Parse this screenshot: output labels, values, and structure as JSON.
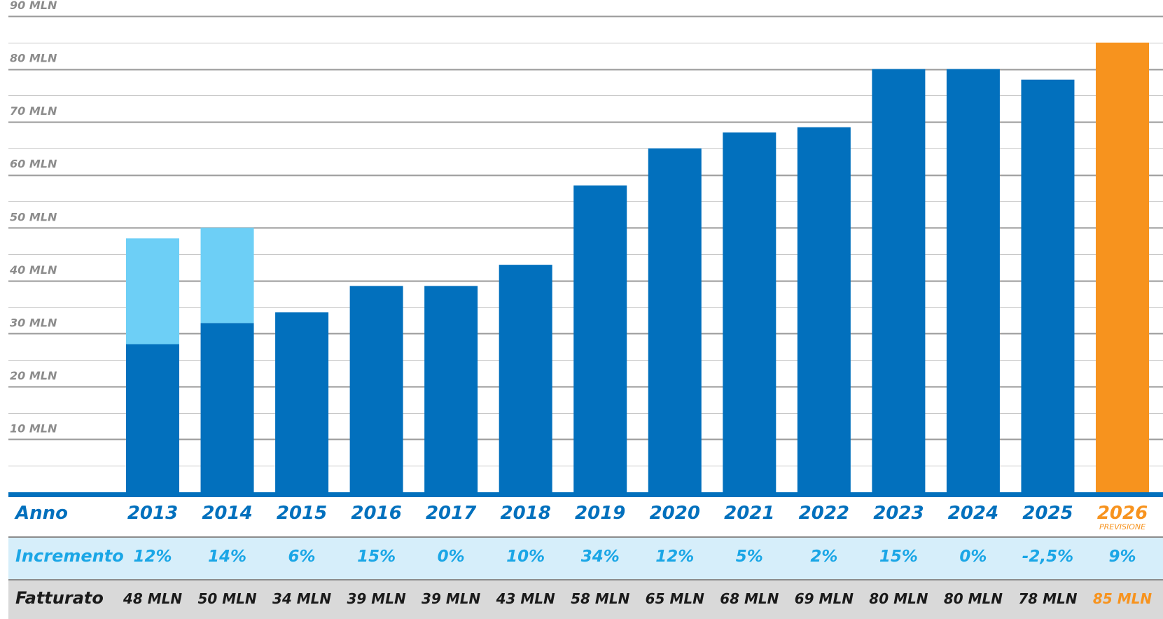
{
  "chart_data": {
    "type": "bar",
    "y_unit": "MLN",
    "ylim": [
      0,
      90
    ],
    "ytick_labels": [
      "10 MLN",
      "20 MLN",
      "30 MLN",
      "40 MLN",
      "50 MLN",
      "60 MLN",
      "70 MLN",
      "80 MLN",
      "90 MLN"
    ],
    "ytick_values": [
      10,
      20,
      30,
      40,
      50,
      60,
      70,
      80,
      90
    ],
    "grid": true,
    "categories": [
      "2013",
      "2014",
      "2015",
      "2016",
      "2017",
      "2018",
      "2019",
      "2020",
      "2021",
      "2022",
      "2023",
      "2024",
      "2025",
      "2026"
    ],
    "series": [
      {
        "values": [
          28,
          32,
          34,
          39,
          39,
          43,
          58,
          65,
          68,
          69,
          80,
          80,
          78,
          85
        ]
      },
      {
        "values": [
          20,
          18,
          0,
          0,
          0,
          0,
          0,
          0,
          0,
          0,
          0,
          0,
          0,
          0
        ]
      }
    ],
    "colors": {
      "main": "#0270bd",
      "light": "#6dcff6",
      "forecast": "#f7931e",
      "grid": "#a6a6a6",
      "row_increment_bg": "#d6eefa",
      "row_fatturato_bg": "#d9d9d9"
    },
    "forecast_category": "2026",
    "forecast_note": "PREVISIONE",
    "table": {
      "row_labels": {
        "anno": "Anno",
        "incremento": "Incremento",
        "fatturato": "Fatturato"
      },
      "incremento": [
        "12%",
        "14%",
        "6%",
        "15%",
        "0%",
        "10%",
        "34%",
        "12%",
        "5%",
        "2%",
        "15%",
        "0%",
        "-2,5%",
        "9%"
      ],
      "fatturato": [
        "48 MLN",
        "50 MLN",
        "34 MLN",
        "39 MLN",
        "39 MLN",
        "43 MLN",
        "58 MLN",
        "65 MLN",
        "68 MLN",
        "69 MLN",
        "80 MLN",
        "80 MLN",
        "78 MLN",
        "85 MLN"
      ]
    }
  }
}
